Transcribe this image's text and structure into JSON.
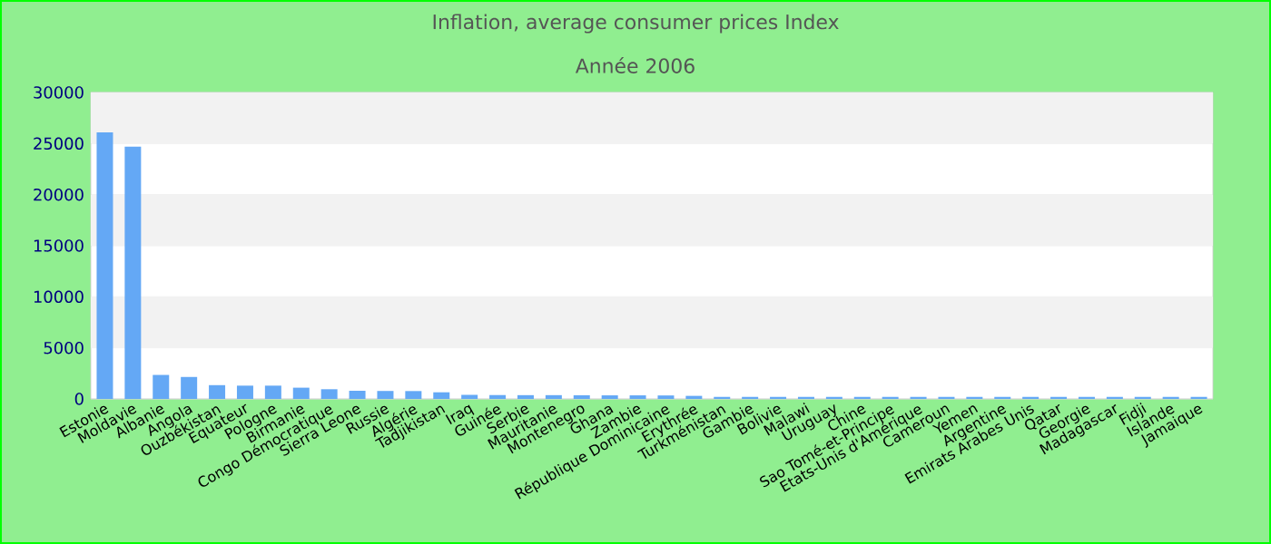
{
  "chart_data": {
    "type": "bar",
    "title": "Inflation, average consumer prices  Index",
    "subtitle": "Année 2006",
    "categories": [
      "Estonie",
      "Moldavie",
      "Albanie",
      "Angola",
      "Ouzbékistan",
      "Equateur",
      "Pologne",
      "Birmanie",
      "Congo Démocratique",
      "Sierra Leone",
      "Russie",
      "Algérie",
      "Tadjikistan",
      "Iraq",
      "Guinée",
      "Serbie",
      "Mauritanie",
      "Montenegro",
      "Ghana",
      "Zambie",
      "République Dominicaine",
      "Erythrée",
      "Turkménistan",
      "Gambie",
      "Bolivie",
      "Malawi",
      "Uruguay",
      "Chine",
      "Sao Tomé-et-Principe",
      "Etats-Unis d'Amérique",
      "Cameroun",
      "Yemen",
      "Argentine",
      "Emirats Arabes Unis",
      "Qatar",
      "Georgie",
      "Madagascar",
      "Fidji",
      "Islande",
      "Jamaique"
    ],
    "values": [
      26100,
      24700,
      2350,
      2150,
      1350,
      1300,
      1300,
      1100,
      950,
      800,
      780,
      770,
      650,
      400,
      380,
      370,
      370,
      360,
      350,
      350,
      340,
      300,
      200,
      200,
      200,
      200,
      200,
      200,
      200,
      200,
      200,
      200,
      200,
      200,
      200,
      200,
      200,
      200,
      200,
      200
    ],
    "color": "#64a8f5",
    "ylim": [
      0,
      30000
    ],
    "yticks": [
      0,
      5000,
      10000,
      15000,
      20000,
      25000,
      30000
    ],
    "grid": "y"
  }
}
